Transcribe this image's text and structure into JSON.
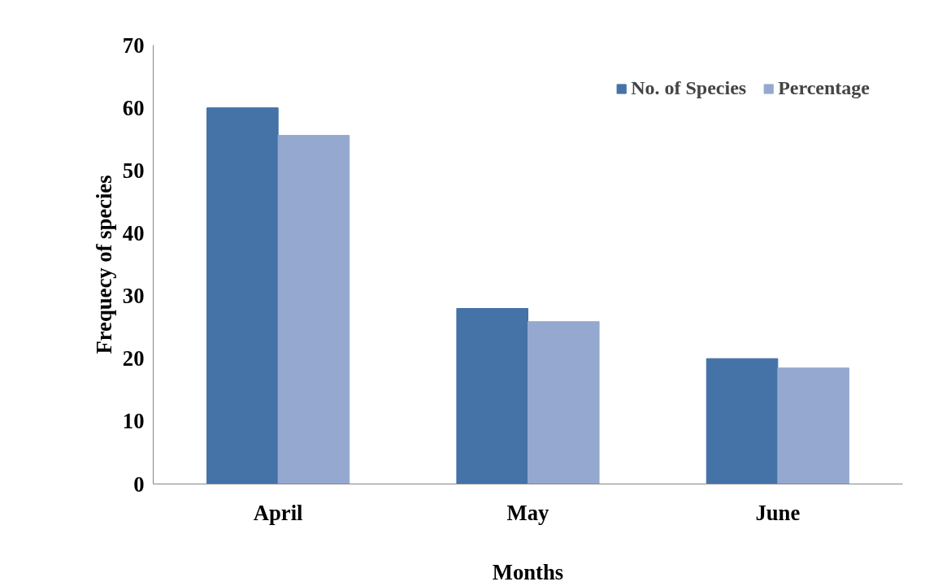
{
  "chart_data": {
    "type": "bar",
    "xlabel": "Months",
    "ylabel": "Frequecy of species",
    "categories": [
      "April",
      "May",
      "June"
    ],
    "series": [
      {
        "name": "No. of Species",
        "color": "#4572a7",
        "values": [
          60,
          28,
          20
        ]
      },
      {
        "name": "Percentage",
        "color": "#95a9d0",
        "values": [
          55.6,
          25.9,
          18.5
        ]
      }
    ],
    "ylim": [
      0,
      70
    ],
    "yticks": [
      0,
      10,
      20,
      30,
      40,
      50,
      60,
      70
    ],
    "grid": false,
    "legend": "top right"
  }
}
